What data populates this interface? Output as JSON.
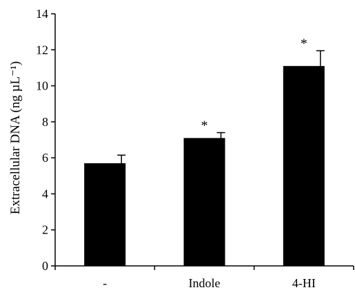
{
  "chart_data": {
    "type": "bar",
    "title": "",
    "xlabel": "",
    "ylabel": "Extracellular DNA (ng µL⁻¹)",
    "categories": [
      "-",
      "Indole",
      "4-HI"
    ],
    "values": [
      5.7,
      7.1,
      11.1
    ],
    "errors": [
      0.45,
      0.3,
      0.85
    ],
    "annotations": [
      "",
      "*",
      "*"
    ],
    "ylim": [
      0,
      14
    ],
    "yticks": [
      0,
      2,
      4,
      6,
      8,
      10,
      12,
      14
    ],
    "grid": false,
    "legend": "none",
    "bar_color": "#000000"
  }
}
